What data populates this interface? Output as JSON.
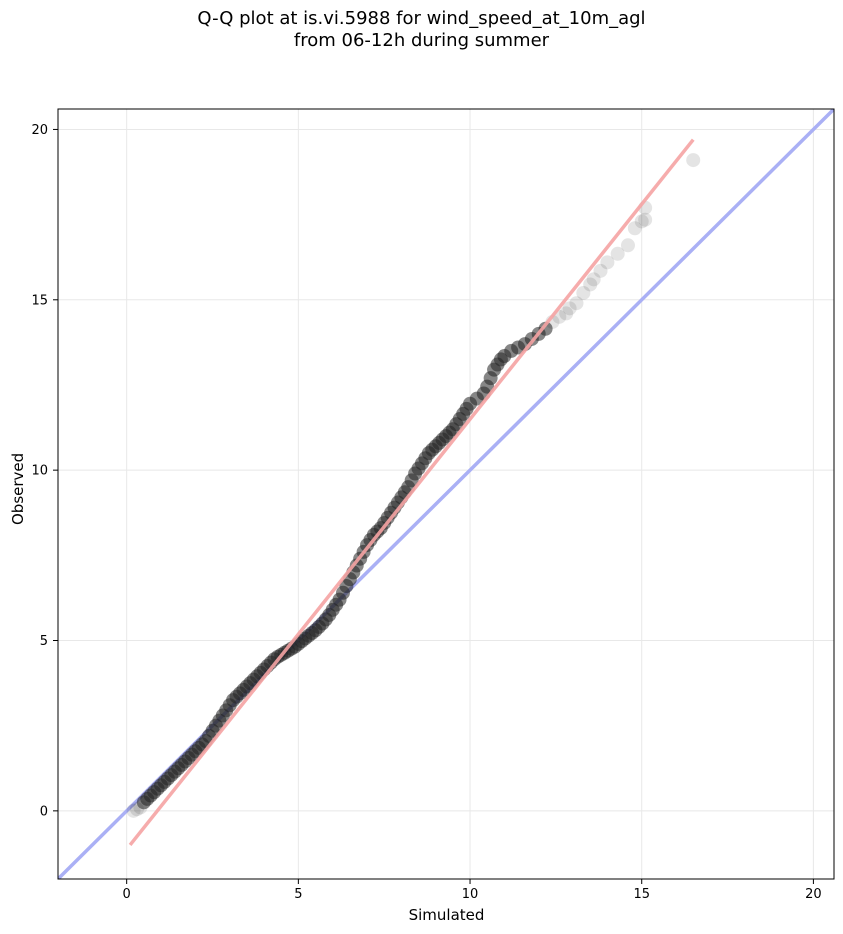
{
  "chart_data": {
    "type": "scatter",
    "title_lines": [
      "Q-Q plot at is.vi.5988 for wind_speed_at_10m_agl",
      "from 06-12h during summer"
    ],
    "xlabel": "Simulated",
    "ylabel": "Observed",
    "xlim": [
      -2,
      20.6
    ],
    "ylim": [
      -2,
      20.6
    ],
    "xticks": [
      0,
      5,
      10,
      15,
      20
    ],
    "yticks": [
      0,
      5,
      10,
      15,
      20
    ],
    "grid": true,
    "identity_line": {
      "color": "#aab0f5",
      "from": [
        -2,
        -2
      ],
      "to": [
        20.6,
        20.6
      ]
    },
    "fit_line": {
      "color": "#f5a3a3",
      "from": [
        0.1,
        -1.0
      ],
      "to": [
        16.5,
        19.7
      ]
    },
    "point_color": "#222222",
    "series": [
      {
        "x": [
          0.2,
          0.3,
          0.4,
          0.5,
          0.6,
          0.7,
          0.8,
          0.9,
          1.0,
          1.1,
          1.2,
          1.3,
          1.4,
          1.5,
          1.6,
          1.7,
          1.8,
          1.9,
          2.0,
          2.1,
          2.2,
          2.3,
          2.4,
          2.5,
          2.6,
          2.7,
          2.8,
          2.9,
          3.0,
          3.1,
          3.2,
          3.3,
          3.4,
          3.5,
          3.6,
          3.7,
          3.8,
          3.9,
          4.0,
          4.1,
          4.2,
          4.3,
          4.4,
          4.5,
          4.6,
          4.7,
          4.8,
          4.9,
          5.0,
          5.1,
          5.2,
          5.3,
          5.4,
          5.5,
          5.6,
          5.7,
          5.8,
          5.9,
          6.0,
          6.1,
          6.2,
          6.3,
          6.4,
          6.5,
          6.6,
          6.7,
          6.8,
          6.9,
          7.0,
          7.1,
          7.2,
          7.3,
          7.4,
          7.5,
          7.6,
          7.7,
          7.8,
          7.9,
          8.0,
          8.1,
          8.2,
          8.3,
          8.4,
          8.5,
          8.6,
          8.7,
          8.8,
          8.9,
          9.0,
          9.1,
          9.2,
          9.3,
          9.4,
          9.5,
          9.6,
          9.7,
          9.8,
          9.9,
          10.0,
          10.2,
          10.4,
          10.5,
          10.6,
          10.7,
          10.8,
          10.9,
          11.0,
          11.2,
          11.4,
          11.6,
          11.8,
          12.0,
          12.2,
          12.4,
          12.6,
          12.8,
          12.9,
          13.1,
          13.3,
          13.5,
          13.6,
          13.8,
          14.0,
          14.3,
          14.6,
          14.8,
          15.0,
          15.1,
          15.1,
          16.5
        ],
        "y": [
          0.0,
          0.05,
          0.1,
          0.25,
          0.35,
          0.45,
          0.55,
          0.65,
          0.75,
          0.85,
          0.95,
          1.05,
          1.15,
          1.25,
          1.35,
          1.45,
          1.55,
          1.65,
          1.75,
          1.85,
          1.95,
          2.05,
          2.2,
          2.35,
          2.5,
          2.65,
          2.8,
          2.95,
          3.1,
          3.25,
          3.35,
          3.45,
          3.55,
          3.65,
          3.75,
          3.85,
          3.95,
          4.05,
          4.15,
          4.25,
          4.35,
          4.45,
          4.52,
          4.58,
          4.64,
          4.7,
          4.76,
          4.82,
          4.9,
          4.98,
          5.06,
          5.14,
          5.22,
          5.3,
          5.4,
          5.5,
          5.62,
          5.75,
          5.9,
          6.05,
          6.2,
          6.4,
          6.6,
          6.8,
          7.0,
          7.2,
          7.4,
          7.6,
          7.8,
          7.95,
          8.1,
          8.2,
          8.3,
          8.45,
          8.6,
          8.75,
          8.9,
          9.05,
          9.2,
          9.35,
          9.5,
          9.7,
          9.9,
          10.05,
          10.2,
          10.35,
          10.5,
          10.6,
          10.7,
          10.8,
          10.9,
          11.0,
          11.1,
          11.2,
          11.35,
          11.5,
          11.65,
          11.8,
          11.95,
          12.1,
          12.25,
          12.45,
          12.7,
          12.95,
          13.1,
          13.25,
          13.35,
          13.5,
          13.6,
          13.7,
          13.85,
          14.0,
          14.15,
          14.35,
          14.5,
          14.6,
          14.75,
          14.9,
          15.2,
          15.45,
          15.6,
          15.85,
          16.1,
          16.35,
          16.6,
          17.1,
          17.3,
          17.35,
          17.7,
          19.1
        ]
      }
    ]
  }
}
